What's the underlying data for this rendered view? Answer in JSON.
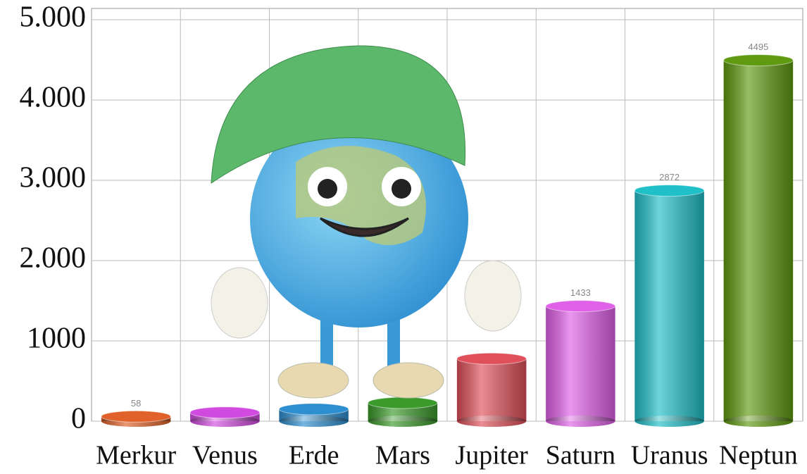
{
  "chart_data": {
    "type": "bar",
    "categories": [
      "Merkur",
      "Venus",
      "Erde",
      "Mars",
      "Jupiter",
      "Saturn",
      "Uranus",
      "Neptun"
    ],
    "values": [
      58,
      108,
      150,
      228,
      778,
      1433,
      2872,
      4495
    ],
    "value_labels": [
      "58",
      null,
      null,
      null,
      null,
      "1433",
      "2872",
      "4495"
    ],
    "colors": [
      "#e0622a",
      "#d24be0",
      "#2e8fd0",
      "#3a9a2a",
      "#e0505a",
      "#e060e8",
      "#20c0c8",
      "#5f9a10"
    ],
    "ylim": [
      0,
      5000
    ],
    "yticks": [
      0,
      1000,
      {
        "value": 2000,
        "label": "2.000"
      },
      {
        "value": 3000,
        "label": "3.000"
      },
      {
        "value": 4000,
        "label": "4.000"
      },
      {
        "value": 5000,
        "label": "5.000"
      }
    ],
    "grid": true
  }
}
